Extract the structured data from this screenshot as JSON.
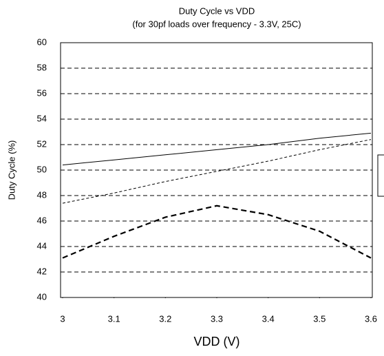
{
  "chart_data": {
    "type": "line",
    "title": "Duty Cycle vs VDD",
    "subtitle": "(for 30pf loads over frequency - 3.3V, 25C)",
    "x_label": "VDD (V)",
    "y_label": "Duty Cycle (%)",
    "x": [
      3,
      3.1,
      3.2,
      3.3,
      3.4,
      3.5,
      3.6
    ],
    "xlim": [
      3,
      3.6
    ],
    "xticks": [
      3,
      3.1,
      3.2,
      3.3,
      3.4,
      3.5,
      3.6
    ],
    "ylim": [
      40,
      60
    ],
    "yticks": [
      40,
      42,
      44,
      46,
      48,
      50,
      52,
      54,
      56,
      58,
      60
    ],
    "grid": true,
    "series": [
      {
        "color": "#000000",
        "dash": "none",
        "width": 1,
        "values": [
          50.4,
          50.8,
          51.2,
          51.6,
          52.0,
          52.5,
          52.9
        ]
      },
      {
        "color": "#000000",
        "dash": "4 3",
        "width": 1,
        "values": [
          47.4,
          48.2,
          49.1,
          49.9,
          50.7,
          51.6,
          52.4
        ]
      },
      {
        "color": "#000000",
        "dash": "8 5",
        "width": 2.2,
        "values": [
          43.1,
          44.8,
          46.3,
          47.2,
          46.5,
          45.2,
          43.1
        ]
      }
    ]
  }
}
